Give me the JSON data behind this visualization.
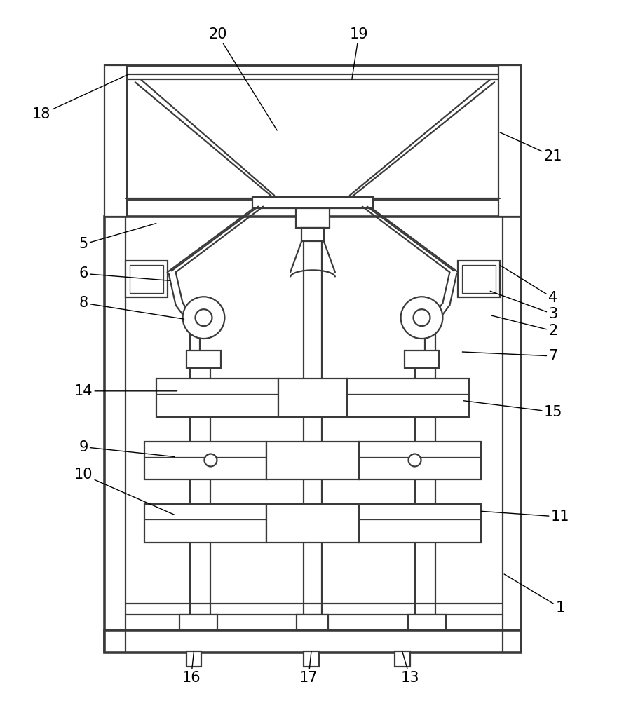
{
  "bg": "#ffffff",
  "lc": "#3a3a3a",
  "lw": 1.6,
  "tlw": 0.9,
  "fig_w": 8.9,
  "fig_h": 10.0
}
